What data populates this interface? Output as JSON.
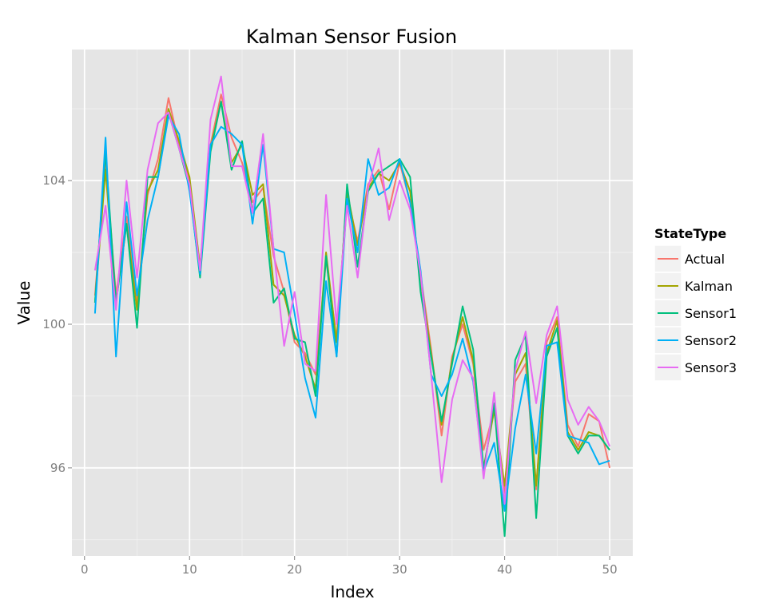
{
  "chart_data": {
    "type": "line",
    "title": "Kalman Sensor Fusion",
    "xlabel": "Index",
    "ylabel": "Value",
    "xlim": [
      -1.2,
      52.2
    ],
    "ylim": [
      93.55,
      107.65
    ],
    "x_ticks": [
      0,
      10,
      20,
      30,
      40,
      50
    ],
    "y_ticks": [
      96,
      100,
      104
    ],
    "grid": true,
    "legend": {
      "title": "StateType",
      "placement": "right"
    },
    "x": [
      1,
      2,
      3,
      4,
      5,
      6,
      7,
      8,
      9,
      10,
      11,
      12,
      13,
      14,
      15,
      16,
      17,
      18,
      19,
      20,
      21,
      22,
      23,
      24,
      25,
      26,
      27,
      28,
      29,
      30,
      31,
      32,
      33,
      34,
      35,
      36,
      37,
      38,
      39,
      40,
      41,
      42,
      43,
      44,
      45,
      46,
      47,
      48,
      49,
      50
    ],
    "series": [
      {
        "name": "Actual",
        "color": "#F8766D",
        "values": [
          100.8,
          104.5,
          100.8,
          103.0,
          100.6,
          103.6,
          104.6,
          106.3,
          105.0,
          104.0,
          101.5,
          105.0,
          106.4,
          105.2,
          104.5,
          103.4,
          103.8,
          101.9,
          100.9,
          99.5,
          99.2,
          98.6,
          101.8,
          99.6,
          103.6,
          102.3,
          103.9,
          104.3,
          103.2,
          104.5,
          103.4,
          101.4,
          99.3,
          96.9,
          99.1,
          100.0,
          98.9,
          96.5,
          97.6,
          95.3,
          98.4,
          98.9,
          95.4,
          99.5,
          100.2,
          97.2,
          96.6,
          97.5,
          97.3,
          96.0
        ]
      },
      {
        "name": "Kalman",
        "color": "#A3A500",
        "values": [
          100.6,
          104.3,
          100.6,
          102.8,
          100.4,
          103.7,
          104.3,
          106.0,
          105.1,
          104.1,
          101.6,
          104.9,
          106.2,
          104.5,
          105.0,
          103.6,
          103.9,
          101.1,
          100.8,
          99.7,
          99.1,
          98.2,
          102.0,
          99.5,
          103.7,
          102.2,
          103.8,
          104.2,
          104.0,
          104.5,
          103.7,
          101.2,
          99.2,
          97.2,
          99.0,
          100.2,
          99.0,
          96.0,
          97.6,
          95.5,
          98.6,
          99.2,
          95.5,
          99.2,
          100.1,
          97.0,
          96.5,
          97.0,
          96.9,
          96.5
        ]
      },
      {
        "name": "Sensor1",
        "color": "#00BF7D",
        "values": [
          100.6,
          104.8,
          100.6,
          102.8,
          99.9,
          104.1,
          104.1,
          105.9,
          104.9,
          103.8,
          101.3,
          104.8,
          106.2,
          104.3,
          105.1,
          103.1,
          103.5,
          100.6,
          101.0,
          99.6,
          99.5,
          98.0,
          101.9,
          99.1,
          103.9,
          101.6,
          103.7,
          104.2,
          104.4,
          104.6,
          104.1,
          100.9,
          99.1,
          97.3,
          98.9,
          100.5,
          99.3,
          95.9,
          97.8,
          94.1,
          99.0,
          99.7,
          94.6,
          99.1,
          99.9,
          96.9,
          96.4,
          96.9,
          96.9,
          96.5
        ]
      },
      {
        "name": "Sensor2",
        "color": "#00B0F6",
        "values": [
          100.3,
          105.2,
          99.1,
          103.4,
          100.8,
          102.9,
          104.1,
          105.8,
          105.3,
          103.7,
          101.4,
          105.0,
          105.5,
          105.3,
          105.0,
          102.8,
          105.0,
          102.1,
          102.0,
          100.3,
          98.5,
          97.4,
          101.2,
          99.1,
          103.5,
          102.0,
          104.6,
          103.6,
          103.8,
          104.6,
          103.4,
          101.5,
          98.6,
          98.0,
          98.6,
          99.6,
          98.4,
          95.9,
          96.7,
          94.8,
          97.1,
          98.6,
          96.4,
          99.4,
          99.5,
          96.9,
          96.8,
          96.7,
          96.1,
          96.2
        ]
      },
      {
        "name": "Sensor3",
        "color": "#E76BF3",
        "values": [
          101.5,
          103.3,
          100.4,
          104.0,
          101.3,
          104.3,
          105.6,
          105.9,
          104.9,
          103.9,
          101.5,
          105.7,
          106.9,
          104.4,
          104.4,
          103.1,
          105.3,
          102.1,
          99.4,
          100.9,
          98.9,
          98.7,
          103.6,
          100.0,
          103.3,
          101.3,
          103.8,
          104.9,
          102.9,
          104.0,
          103.2,
          101.4,
          98.6,
          95.6,
          97.9,
          99.0,
          98.5,
          95.7,
          98.1,
          95.0,
          98.7,
          99.8,
          97.8,
          99.7,
          100.5,
          97.9,
          97.2,
          97.7,
          97.3,
          96.6
        ]
      }
    ]
  }
}
